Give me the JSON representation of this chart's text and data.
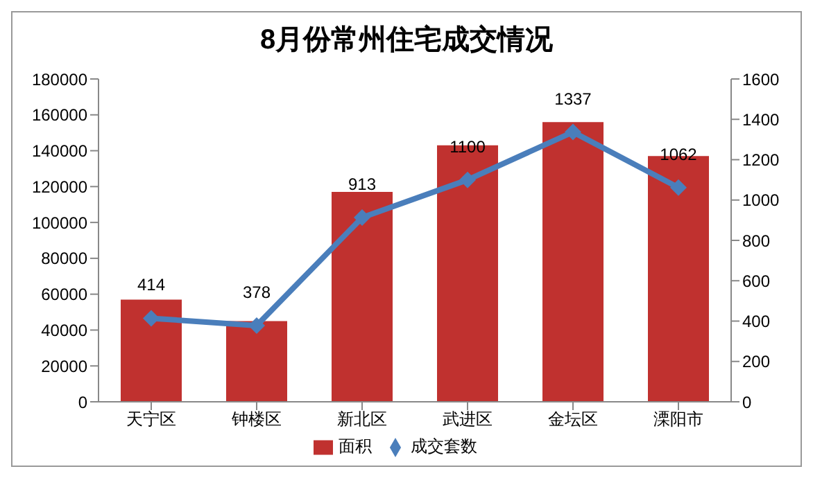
{
  "chart_data": {
    "type": "bar",
    "title": "8月份常州住宅成交情况",
    "categories": [
      "天宁区",
      "钟楼区",
      "新北区",
      "武进区",
      "金坛区",
      "溧阳市"
    ],
    "series": [
      {
        "name": "面积",
        "color": "#c0312f",
        "values": [
          57000,
          45000,
          117000,
          143000,
          156000,
          137000
        ]
      },
      {
        "name": "成交套数",
        "type": "line",
        "axis": "y2",
        "color": "#4a7ebb",
        "marker": "diamond",
        "values": [
          414,
          378,
          913,
          1100,
          1337,
          1062
        ],
        "value_labels": [
          "414",
          "378",
          "913",
          "1100",
          "1337",
          "1062"
        ]
      }
    ],
    "ylim": [
      0,
      180000
    ],
    "yticks": [
      0,
      20000,
      40000,
      60000,
      80000,
      100000,
      120000,
      140000,
      160000,
      180000
    ],
    "y2lim": [
      0,
      1600
    ],
    "y2ticks": [
      0,
      200,
      400,
      600,
      800,
      1000,
      1200,
      1400,
      1600
    ],
    "grid": false,
    "legend": "bottom"
  }
}
